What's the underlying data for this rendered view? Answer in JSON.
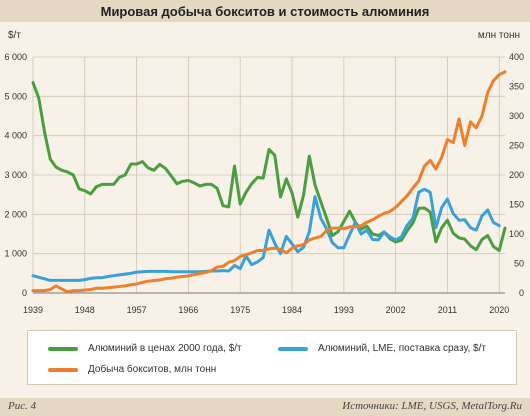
{
  "header": {
    "title": "Мировая добыча бокситов и стоимость алюминия"
  },
  "footer": {
    "figure": "Рис. 4",
    "sources": "Источники: LME, USGS, MetalTorg.Ru"
  },
  "chart_data": {
    "type": "line",
    "title": "Мировая добыча бокситов и стоимость алюминия",
    "left_axis": {
      "unit": "$/т",
      "ylim": [
        0,
        6000
      ],
      "ticks": [
        "0",
        "1 000",
        "2 000",
        "3 000",
        "4 000",
        "5 000",
        "6 000"
      ]
    },
    "right_axis": {
      "unit": "млн тонн",
      "ylim": [
        0,
        400
      ],
      "ticks": [
        "0",
        "50",
        "100",
        "150",
        "200",
        "250",
        "300",
        "350",
        "400"
      ]
    },
    "x_axis": {
      "xlim": [
        1939,
        2021
      ],
      "ticks": [
        "1939",
        "1948",
        "1957",
        "1966",
        "1975",
        "1984",
        "1993",
        "2002",
        "2011",
        "2020"
      ]
    },
    "grid": true,
    "legend_position": "bottom",
    "colors": {
      "green": "#4a9e3f",
      "blue": "#3aa0d8",
      "orange": "#ee7f2d"
    },
    "series": [
      {
        "name": "Алюминий в ценах 2000 года, $/т",
        "axis": "left",
        "color": "#4a9e3f",
        "x": [
          1939,
          1940,
          1941,
          1942,
          1943,
          1944,
          1945,
          1946,
          1947,
          1948,
          1949,
          1950,
          1951,
          1952,
          1953,
          1954,
          1955,
          1956,
          1957,
          1958,
          1959,
          1960,
          1961,
          1962,
          1963,
          1964,
          1965,
          1966,
          1967,
          1968,
          1969,
          1970,
          1971,
          1972,
          1973,
          1974,
          1975,
          1976,
          1977,
          1978,
          1979,
          1980,
          1981,
          1982,
          1983,
          1984,
          1985,
          1986,
          1987,
          1988,
          1989,
          1990,
          1991,
          1992,
          1993,
          1994,
          1995,
          1996,
          1997,
          1998,
          1999,
          2000,
          2001,
          2002,
          2003,
          2004,
          2005,
          2006,
          2007,
          2008,
          2009,
          2010,
          2011,
          2012,
          2013,
          2014,
          2015,
          2016,
          2017,
          2018,
          2019,
          2020,
          2021
        ],
        "values": [
          5350,
          4950,
          4100,
          3400,
          3200,
          3120,
          3080,
          3000,
          2650,
          2600,
          2520,
          2700,
          2760,
          2760,
          2760,
          2940,
          3000,
          3280,
          3280,
          3340,
          3180,
          3120,
          3270,
          3170,
          2980,
          2780,
          2840,
          2860,
          2800,
          2720,
          2760,
          2760,
          2660,
          2220,
          2190,
          3230,
          2260,
          2560,
          2780,
          2940,
          2920,
          3650,
          3500,
          2440,
          2900,
          2550,
          1930,
          2480,
          3480,
          2750,
          2320,
          1900,
          1460,
          1560,
          1820,
          2080,
          1800,
          1620,
          1700,
          1500,
          1460,
          1550,
          1380,
          1300,
          1340,
          1580,
          1780,
          2150,
          2160,
          2060,
          1300,
          1660,
          1850,
          1520,
          1400,
          1370,
          1200,
          1100,
          1360,
          1460,
          1180,
          1080,
          1650
        ]
      },
      {
        "name": "Алюминий, LME, поставка сразу, $/т",
        "axis": "left",
        "color": "#3aa0d8",
        "x": [
          1939,
          1940,
          1941,
          1942,
          1943,
          1944,
          1945,
          1946,
          1947,
          1948,
          1949,
          1950,
          1951,
          1952,
          1953,
          1954,
          1955,
          1956,
          1957,
          1958,
          1959,
          1960,
          1961,
          1962,
          1963,
          1964,
          1965,
          1966,
          1967,
          1968,
          1969,
          1970,
          1971,
          1972,
          1973,
          1974,
          1975,
          1976,
          1977,
          1978,
          1979,
          1980,
          1981,
          1982,
          1983,
          1984,
          1985,
          1986,
          1987,
          1988,
          1989,
          1990,
          1991,
          1992,
          1993,
          1994,
          1995,
          1996,
          1997,
          1998,
          1999,
          2000,
          2001,
          2002,
          2003,
          2004,
          2005,
          2006,
          2007,
          2008,
          2009,
          2010,
          2011,
          2012,
          2013,
          2014,
          2015,
          2016,
          2017,
          2018,
          2019,
          2020
        ],
        "values": [
          440,
          400,
          360,
          320,
          320,
          320,
          320,
          320,
          320,
          340,
          370,
          390,
          390,
          420,
          440,
          460,
          480,
          500,
          530,
          540,
          550,
          550,
          550,
          550,
          540,
          540,
          540,
          540,
          540,
          540,
          550,
          560,
          560,
          570,
          560,
          700,
          620,
          940,
          720,
          790,
          900,
          1600,
          1260,
          1000,
          1440,
          1250,
          1050,
          1160,
          1550,
          2450,
          1900,
          1630,
          1280,
          1150,
          1150,
          1480,
          1800,
          1500,
          1600,
          1360,
          1350,
          1550,
          1430,
          1350,
          1430,
          1720,
          1900,
          2560,
          2640,
          2560,
          1660,
          2170,
          2390,
          2020,
          1850,
          1860,
          1660,
          1600,
          1960,
          2110,
          1790,
          1710
        ]
      },
      {
        "name": "Добыча бокситов, млн тонн",
        "axis": "right",
        "color": "#ee7f2d",
        "x": [
          1939,
          1940,
          1941,
          1942,
          1943,
          1944,
          1945,
          1946,
          1947,
          1948,
          1949,
          1950,
          1951,
          1952,
          1953,
          1954,
          1955,
          1956,
          1957,
          1958,
          1959,
          1960,
          1961,
          1962,
          1963,
          1964,
          1965,
          1966,
          1967,
          1968,
          1969,
          1970,
          1971,
          1972,
          1973,
          1974,
          1975,
          1976,
          1977,
          1978,
          1979,
          1980,
          1981,
          1982,
          1983,
          1984,
          1985,
          1986,
          1987,
          1988,
          1989,
          1990,
          1991,
          1992,
          1993,
          1994,
          1995,
          1996,
          1997,
          1998,
          1999,
          2000,
          2001,
          2002,
          2003,
          2004,
          2005,
          2006,
          2007,
          2008,
          2009,
          2010,
          2011,
          2012,
          2013,
          2014,
          2015,
          2016,
          2017,
          2018,
          2019,
          2020,
          2021
        ],
        "values": [
          4,
          4,
          4,
          6,
          12,
          7,
          2,
          4,
          4,
          5,
          6,
          8,
          8,
          9,
          10,
          11,
          12,
          14,
          15,
          18,
          20,
          21,
          22,
          24,
          25,
          27,
          28,
          29,
          31,
          33,
          35,
          38,
          44,
          45,
          52,
          55,
          62,
          65,
          68,
          72,
          72,
          75,
          76,
          74,
          68,
          76,
          80,
          82,
          90,
          93,
          96,
          106,
          110,
          110,
          109,
          112,
          112,
          114,
          120,
          124,
          130,
          135,
          138,
          145,
          155,
          165,
          178,
          190,
          215,
          225,
          210,
          230,
          260,
          255,
          295,
          250,
          290,
          280,
          300,
          340,
          360,
          370,
          375
        ]
      }
    ]
  }
}
